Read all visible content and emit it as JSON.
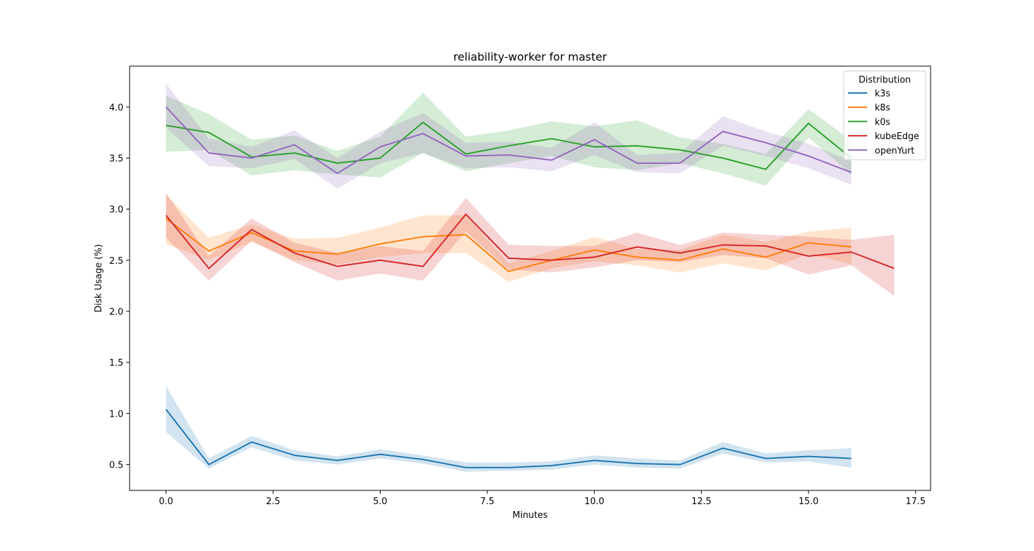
{
  "chart_data": {
    "type": "line",
    "title": "reliability-worker for master",
    "xlabel": "Minutes",
    "ylabel": "Disk Usage (%)",
    "xlim": [
      -0.85,
      17.85
    ],
    "ylim": [
      0.247,
      4.4
    ],
    "xticks": [
      0.0,
      2.5,
      5.0,
      7.5,
      10.0,
      12.5,
      15.0,
      17.5
    ],
    "xtick_labels": [
      "0.0",
      "2.5",
      "5.0",
      "7.5",
      "10.0",
      "12.5",
      "15.0",
      "17.5"
    ],
    "yticks": [
      0.5,
      1.0,
      1.5,
      2.0,
      2.5,
      3.0,
      3.5,
      4.0
    ],
    "ytick_labels": [
      "0.5",
      "1.0",
      "1.5",
      "2.0",
      "2.5",
      "3.0",
      "3.5",
      "4.0"
    ],
    "grid": false,
    "legend": {
      "title": "Distribution",
      "placement": "top-right"
    },
    "series": [
      {
        "name": "k3s",
        "color": "#1f77b4",
        "x": [
          0,
          1,
          2,
          3,
          4,
          5,
          6,
          7,
          8,
          9,
          10,
          11,
          12,
          13,
          14,
          15,
          16
        ],
        "y": [
          1.04,
          0.5,
          0.72,
          0.59,
          0.54,
          0.6,
          0.55,
          0.47,
          0.47,
          0.49,
          0.54,
          0.51,
          0.5,
          0.66,
          0.56,
          0.58,
          0.56
        ],
        "lower": [
          0.82,
          0.46,
          0.67,
          0.54,
          0.5,
          0.56,
          0.51,
          0.43,
          0.44,
          0.45,
          0.5,
          0.47,
          0.46,
          0.61,
          0.52,
          0.53,
          0.47
        ],
        "upper": [
          1.27,
          0.56,
          0.78,
          0.64,
          0.58,
          0.65,
          0.59,
          0.52,
          0.52,
          0.53,
          0.59,
          0.56,
          0.54,
          0.72,
          0.61,
          0.64,
          0.66
        ]
      },
      {
        "name": "k8s",
        "color": "#ff7f0e",
        "x": [
          0,
          1,
          2,
          3,
          4,
          5,
          6,
          7,
          8,
          9,
          10,
          11,
          12,
          13,
          14,
          15,
          16
        ],
        "y": [
          2.91,
          2.59,
          2.77,
          2.59,
          2.56,
          2.66,
          2.73,
          2.75,
          2.39,
          2.5,
          2.6,
          2.53,
          2.5,
          2.61,
          2.53,
          2.67,
          2.63
        ],
        "lower": [
          2.66,
          2.5,
          2.68,
          2.5,
          2.46,
          2.53,
          2.57,
          2.57,
          2.29,
          2.42,
          2.49,
          2.45,
          2.38,
          2.47,
          2.4,
          2.56,
          2.46
        ],
        "upper": [
          3.14,
          2.72,
          2.85,
          2.71,
          2.72,
          2.82,
          2.94,
          2.94,
          2.47,
          2.59,
          2.73,
          2.61,
          2.6,
          2.75,
          2.68,
          2.78,
          2.82
        ]
      },
      {
        "name": "k0s",
        "color": "#2ca02c",
        "x": [
          0,
          1,
          2,
          3,
          4,
          5,
          6,
          7,
          8,
          9,
          10,
          11,
          12,
          13,
          14,
          15,
          16
        ],
        "y": [
          3.82,
          3.75,
          3.51,
          3.55,
          3.45,
          3.5,
          3.85,
          3.54,
          3.62,
          3.69,
          3.61,
          3.62,
          3.58,
          3.5,
          3.39,
          3.84,
          3.5
        ],
        "lower": [
          3.56,
          3.58,
          3.33,
          3.38,
          3.34,
          3.31,
          3.55,
          3.37,
          3.45,
          3.52,
          3.41,
          3.38,
          3.45,
          3.35,
          3.23,
          3.7,
          3.34
        ],
        "upper": [
          4.11,
          3.93,
          3.68,
          3.72,
          3.57,
          3.71,
          4.14,
          3.71,
          3.77,
          3.86,
          3.81,
          3.87,
          3.7,
          3.64,
          3.54,
          3.98,
          3.67
        ]
      },
      {
        "name": "kubeEdge",
        "color": "#d62728",
        "x": [
          0,
          1,
          2,
          3,
          4,
          5,
          6,
          7,
          8,
          9,
          10,
          11,
          12,
          13,
          14,
          15,
          16,
          17
        ],
        "y": [
          2.94,
          2.42,
          2.8,
          2.57,
          2.44,
          2.5,
          2.44,
          2.95,
          2.52,
          2.5,
          2.53,
          2.63,
          2.57,
          2.65,
          2.64,
          2.54,
          2.58,
          2.42
        ],
        "lower": [
          2.72,
          2.3,
          2.69,
          2.48,
          2.3,
          2.37,
          2.3,
          2.78,
          2.41,
          2.38,
          2.43,
          2.5,
          2.48,
          2.55,
          2.52,
          2.36,
          2.45,
          2.15
        ],
        "upper": [
          3.16,
          2.54,
          2.91,
          2.67,
          2.57,
          2.64,
          2.59,
          3.11,
          2.65,
          2.64,
          2.64,
          2.77,
          2.65,
          2.77,
          2.75,
          2.73,
          2.7,
          2.75
        ]
      },
      {
        "name": "openYurt",
        "color": "#9467bd",
        "x": [
          0,
          1,
          2,
          3,
          4,
          5,
          6,
          7,
          8,
          9,
          10,
          11,
          12,
          13,
          14,
          15,
          16
        ],
        "y": [
          4.0,
          3.55,
          3.5,
          3.63,
          3.35,
          3.61,
          3.74,
          3.52,
          3.53,
          3.48,
          3.68,
          3.45,
          3.45,
          3.76,
          3.65,
          3.52,
          3.36
        ],
        "lower": [
          3.8,
          3.42,
          3.4,
          3.49,
          3.2,
          3.45,
          3.55,
          3.4,
          3.41,
          3.37,
          3.53,
          3.36,
          3.35,
          3.62,
          3.52,
          3.4,
          3.24
        ],
        "upper": [
          4.23,
          3.69,
          3.61,
          3.77,
          3.5,
          3.76,
          3.94,
          3.65,
          3.66,
          3.6,
          3.85,
          3.53,
          3.55,
          3.91,
          3.76,
          3.64,
          3.47
        ]
      }
    ]
  }
}
